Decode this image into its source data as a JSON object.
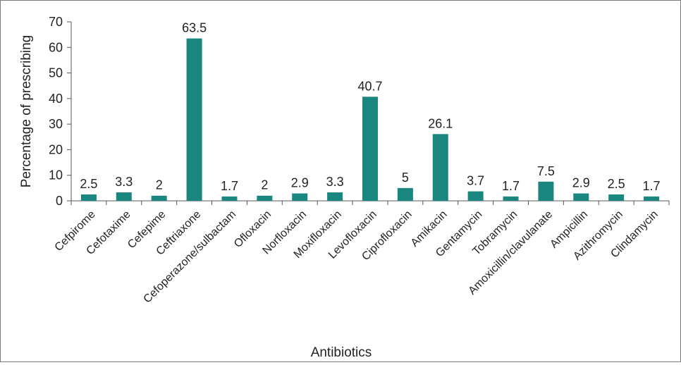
{
  "chart_data": {
    "type": "bar",
    "xlabel": "Antibiotics",
    "ylabel": "Percentage of prescribing",
    "ylim": [
      0,
      70
    ],
    "yticks": [
      0,
      10,
      20,
      30,
      40,
      50,
      60,
      70
    ],
    "grid": false,
    "categories": [
      "Cefpirome",
      "Cefotaxime",
      "Cefepime",
      "Ceftriaxone",
      "Cefoperazone/sulbactam",
      "Ofloxacin",
      "Norfloxacin",
      "Moxifloxacin",
      "Levofloxacin",
      "Ciprofloxacin",
      "Amikacin",
      "Gentamycin",
      "Tobramycin",
      "Amoxicillin/clavulanate",
      "Ampicillin",
      "Azithromycin",
      "Clindamycin"
    ],
    "values": [
      2.5,
      3.3,
      2,
      63.5,
      1.7,
      2,
      2.9,
      3.3,
      40.7,
      5,
      26.1,
      3.7,
      1.7,
      7.5,
      2.9,
      2.5,
      1.7
    ],
    "data_labels": [
      "2.5",
      "3.3",
      "2",
      "63.5",
      "1.7",
      "2",
      "2.9",
      "3.3",
      "40.7",
      "5",
      "26.1",
      "3.7",
      "1.7",
      "7.5",
      "2.9",
      "2.5",
      "1.7"
    ],
    "bar_color": "#1a8680"
  }
}
